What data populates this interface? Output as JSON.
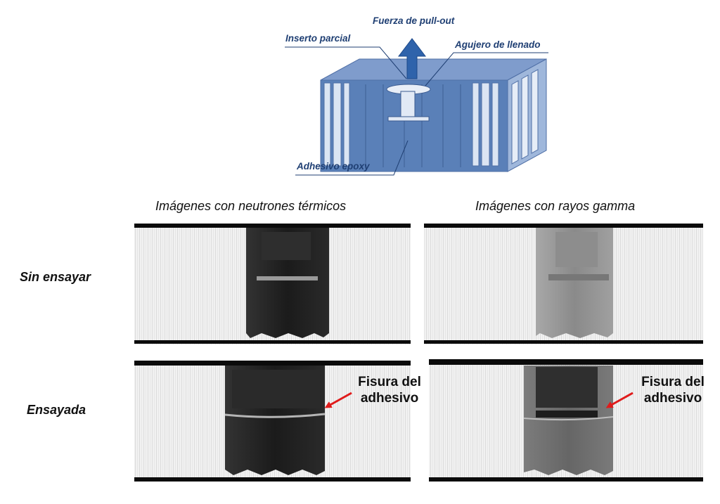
{
  "diagram": {
    "force_label": "Fuerza de pull-out",
    "insert_label": "Inserto parcial",
    "fill_hole_label": "Agujero de llenado",
    "adhesive_label": "Adhesivo epoxy",
    "colors": {
      "panel": "#5a80b8",
      "panel_top": "#7f9ccc",
      "arrow": "#2f63ab",
      "label": "#1f3f73"
    }
  },
  "columns": {
    "neutron_title": "Imágenes con neutrones térmicos",
    "gamma_title": "Imágenes con rayos gamma"
  },
  "rows": {
    "untested_label": "Sin ensayar",
    "tested_label": "Ensayada"
  },
  "annotations": {
    "crack_line1": "Fisura del",
    "crack_line2": "adhesivo",
    "arrow_color": "#e01b1b"
  }
}
